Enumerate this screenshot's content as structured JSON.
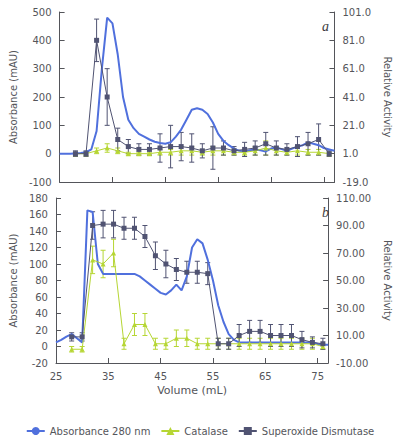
{
  "chart_data": [
    {
      "type": "line",
      "title": "a",
      "ylabel": "Absorbance (mAU)",
      "y2label": "Relative Activity",
      "xlim": [
        25,
        77
      ],
      "xticks": [
        25,
        35,
        45,
        55,
        65,
        75
      ],
      "ylim": [
        -100,
        500
      ],
      "yticks": [
        -100,
        0,
        100,
        200,
        300,
        400,
        500
      ],
      "y2lim": [
        -19.0,
        101.0
      ],
      "y2ticks": [
        {
          "value": -19.0,
          "label": "-19.0"
        },
        {
          "value": 1.0,
          "label": "1.0"
        },
        {
          "value": 21.0,
          "label": "21.0"
        },
        {
          "value": 41.0,
          "label": "41.0"
        },
        {
          "value": 61.0,
          "label": "61.0"
        },
        {
          "value": 81.0,
          "label": "81.0"
        },
        {
          "value": 101.0,
          "label": "101.0"
        }
      ],
      "tick_labels": "y",
      "grid": false,
      "legend": "bottom",
      "series": [
        {
          "name": "Absorbance 280 nm",
          "type": "line",
          "x": [
            25,
            27,
            29,
            30,
            31,
            32,
            33,
            34,
            35,
            36,
            37,
            38,
            39,
            40,
            41,
            42,
            43,
            44,
            45,
            46,
            47,
            48,
            49,
            50,
            51,
            52,
            53,
            54,
            55,
            56,
            57,
            58,
            59,
            60,
            61,
            62,
            63,
            64,
            65,
            66,
            67,
            68,
            69,
            70,
            71,
            72,
            73,
            74,
            75,
            76,
            77
          ],
          "values": [
            0,
            0,
            2,
            5,
            15,
            80,
            300,
            480,
            460,
            350,
            200,
            120,
            90,
            70,
            60,
            50,
            42,
            38,
            35,
            40,
            60,
            85,
            120,
            155,
            160,
            155,
            140,
            110,
            70,
            45,
            30,
            18,
            10,
            8,
            12,
            15,
            12,
            8,
            18,
            22,
            16,
            10,
            18,
            25,
            30,
            40,
            35,
            30,
            20,
            15,
            10
          ]
        },
        {
          "name": "Catalase",
          "type": "line",
          "marker": "triangle",
          "axis": "y2",
          "x": [
            28,
            30,
            32,
            34,
            36,
            38,
            40,
            42,
            44,
            46,
            48,
            50,
            52,
            54,
            56,
            58,
            60,
            62,
            64,
            66,
            68,
            70,
            72,
            74,
            76
          ],
          "values": [
            1,
            1,
            3,
            5,
            3,
            1,
            1,
            1,
            2,
            2,
            3,
            3,
            2,
            3,
            3,
            2,
            2,
            3,
            5,
            3,
            2,
            3,
            2,
            2,
            1
          ],
          "errors": [
            1,
            1,
            2,
            3,
            2,
            1,
            1,
            1,
            2,
            2,
            3,
            3,
            2,
            3,
            3,
            2,
            2,
            3,
            5,
            3,
            2,
            3,
            2,
            2,
            1
          ]
        },
        {
          "name": "Superoxide Dismutase",
          "type": "line",
          "marker": "square",
          "axis": "y2",
          "x": [
            28,
            30,
            32,
            34,
            36,
            38,
            40,
            42,
            44,
            46,
            48,
            50,
            52,
            54,
            56,
            58,
            60,
            62,
            64,
            66,
            68,
            70,
            72,
            74,
            76
          ],
          "values": [
            1,
            1,
            81,
            41,
            11,
            6,
            4,
            4,
            5,
            6,
            6,
            5,
            3,
            5,
            5,
            3,
            4,
            5,
            8,
            5,
            4,
            6,
            8,
            11,
            1
          ],
          "errors": [
            2,
            2,
            15,
            20,
            8,
            5,
            4,
            4,
            10,
            15,
            10,
            10,
            5,
            15,
            5,
            3,
            5,
            5,
            8,
            5,
            4,
            7,
            8,
            11,
            2
          ]
        }
      ]
    },
    {
      "type": "line",
      "title": "b",
      "xlabel": "Volume (mL)",
      "ylabel": "Absorbance (mAU)",
      "y2label": "Relative Activity",
      "xlim": [
        25,
        77
      ],
      "xticks": [
        25,
        35,
        45,
        55,
        65,
        75
      ],
      "ylim": [
        -20,
        180
      ],
      "yticks": [
        -20,
        0,
        20,
        40,
        60,
        80,
        100,
        120,
        140,
        160,
        180
      ],
      "y2lim": [
        -10.0,
        110.0
      ],
      "y2ticks": [
        {
          "value": -10.0,
          "label": "-10.00"
        },
        {
          "value": 10.0,
          "label": "10.00"
        },
        {
          "value": 30.0,
          "label": "30.00"
        },
        {
          "value": 50.0,
          "label": "50.00"
        },
        {
          "value": 70.0,
          "label": "70.00"
        },
        {
          "value": 90.0,
          "label": "90.00"
        },
        {
          "value": 110.0,
          "label": "110.00"
        }
      ],
      "grid": false,
      "legend": "bottom",
      "series": [
        {
          "name": "Absorbance 280 nm",
          "type": "line",
          "x": [
            25,
            26,
            27,
            28,
            29,
            30,
            31,
            32,
            33,
            34,
            35,
            36,
            37,
            38,
            39,
            40,
            41,
            42,
            43,
            44,
            45,
            46,
            47,
            48,
            49,
            50,
            51,
            52,
            53,
            54,
            55,
            56,
            57,
            58,
            59,
            60,
            61,
            62,
            63,
            64,
            65,
            66,
            67,
            68,
            69,
            70,
            71,
            72,
            73,
            74,
            75,
            76,
            77
          ],
          "values": [
            5,
            8,
            12,
            15,
            10,
            5,
            165,
            163,
            100,
            88,
            88,
            88,
            88,
            88,
            88,
            88,
            85,
            80,
            75,
            70,
            65,
            63,
            68,
            75,
            68,
            85,
            120,
            130,
            125,
            105,
            80,
            50,
            30,
            15,
            8,
            5,
            5,
            5,
            5,
            5,
            5,
            5,
            5,
            5,
            5,
            5,
            5,
            5,
            5,
            5,
            3,
            2,
            2
          ]
        },
        {
          "name": "Catalase",
          "type": "line",
          "marker": "triangle",
          "axis": "y2",
          "x": [
            28,
            30,
            32,
            34,
            36,
            38,
            40,
            42,
            44,
            46,
            48,
            50,
            52,
            54,
            56,
            58,
            60,
            62,
            64,
            66,
            68,
            70,
            72,
            74,
            76
          ],
          "values": [
            0,
            0,
            65,
            62,
            70,
            4,
            18,
            18,
            4,
            4,
            8,
            8,
            4,
            4,
            4,
            4,
            4,
            4,
            4,
            4,
            4,
            4,
            4,
            4,
            2
          ],
          "errors": [
            2,
            2,
            10,
            10,
            10,
            4,
            8,
            8,
            4,
            4,
            6,
            6,
            4,
            4,
            4,
            4,
            4,
            4,
            4,
            4,
            4,
            4,
            4,
            4,
            2
          ]
        },
        {
          "name": "Superoxide Dismutase",
          "type": "line",
          "marker": "square",
          "axis": "y2",
          "x": [
            28,
            30,
            32,
            34,
            36,
            38,
            40,
            42,
            44,
            46,
            48,
            50,
            52,
            54,
            56,
            58,
            60,
            62,
            64,
            66,
            68,
            70,
            72,
            74,
            76
          ],
          "values": [
            9,
            9,
            90,
            91,
            91,
            88,
            88,
            82,
            68,
            62,
            58,
            56,
            56,
            55,
            4,
            4,
            10,
            13,
            13,
            10,
            10,
            10,
            7,
            5,
            4
          ],
          "errors": [
            3,
            3,
            10,
            10,
            10,
            8,
            8,
            8,
            10,
            10,
            8,
            8,
            8,
            8,
            4,
            4,
            8,
            8,
            8,
            8,
            8,
            8,
            6,
            4,
            4
          ]
        }
      ]
    }
  ]
}
